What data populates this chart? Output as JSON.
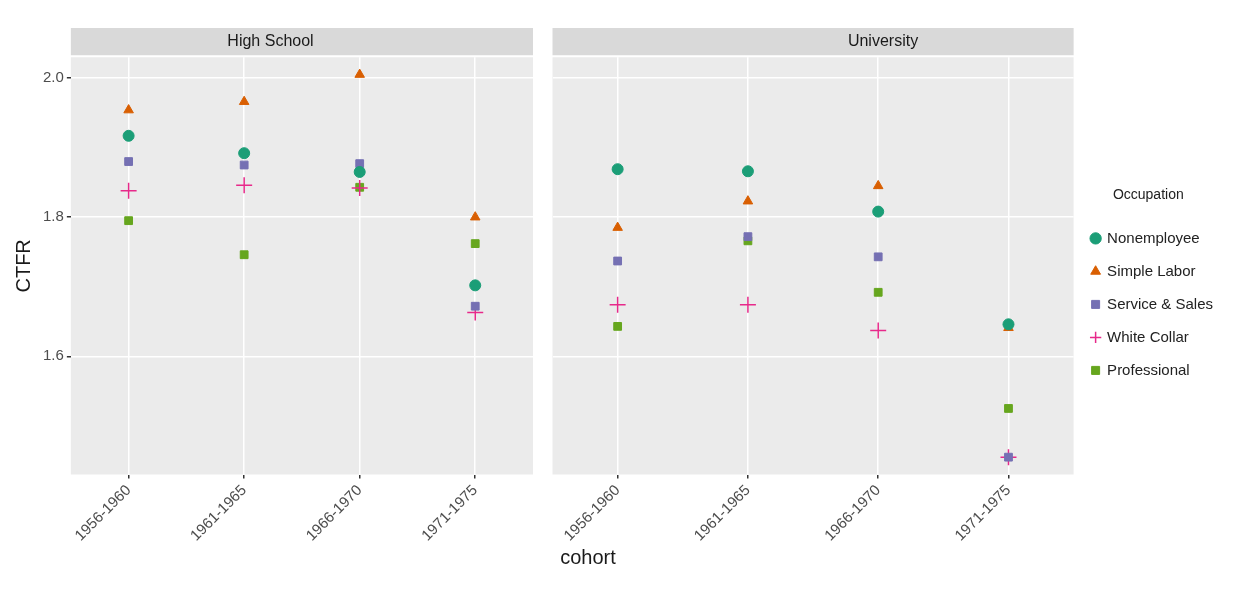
{
  "chart_data": [
    {
      "type": "scatter",
      "title": "High School",
      "xlabel": "cohort",
      "ylabel": "CTFR",
      "categories": [
        "1956-1960",
        "1961-1965",
        "1966-1970",
        "1971-1975"
      ],
      "ylim": [
        1.43,
        2.03
      ],
      "yticks": [
        {
          "value": 1.6,
          "label": "1.6"
        },
        {
          "value": 1.8,
          "label": "1.8"
        },
        {
          "value": 2.0,
          "label": "2.0"
        }
      ],
      "grid": true,
      "legend": false,
      "series": [
        {
          "color": "#1b9e77",
          "marker": "circle",
          "values": [
            1.917,
            1.892,
            1.865,
            1.702
          ]
        },
        {
          "color": "#d95f02",
          "marker": "triangle",
          "values": [
            1.954,
            1.966,
            2.005,
            1.8
          ]
        },
        {
          "color": "#7570b3",
          "marker": "square",
          "values": [
            1.88,
            1.875,
            1.877,
            1.672
          ]
        },
        {
          "color": "#e7298a",
          "marker": "cross",
          "values": [
            1.838,
            1.846,
            1.842,
            1.663
          ]
        },
        {
          "color": "#66a61e",
          "marker": "square",
          "values": [
            1.795,
            1.746,
            1.843,
            1.762
          ]
        }
      ]
    },
    {
      "type": "scatter",
      "title": "University",
      "categories": [
        "1956-1960",
        "1961-1965",
        "1966-1970",
        "1971-1975"
      ],
      "ylim": [
        1.43,
        2.03
      ],
      "yticks": [
        1.6,
        1.8,
        2
      ],
      "grid": true,
      "tick_labels": "x",
      "legend": "right",
      "legend_title": "Occupation",
      "series": [
        {
          "name": "Nonemployee",
          "color": "#1b9e77",
          "marker": "circle",
          "values": [
            1.869,
            1.866,
            1.808,
            1.646
          ]
        },
        {
          "name": "Simple Labor",
          "color": "#d95f02",
          "marker": "triangle",
          "values": [
            1.785,
            1.823,
            1.845,
            1.641
          ]
        },
        {
          "name": "Service & Sales",
          "color": "#7570b3",
          "marker": "square",
          "values": [
            1.737,
            1.772,
            1.743,
            1.455
          ]
        },
        {
          "name": "White Collar",
          "color": "#e7298a",
          "marker": "cross",
          "values": [
            1.674,
            1.674,
            1.637,
            1.455
          ]
        },
        {
          "name": "Professional",
          "color": "#66a61e",
          "marker": "square",
          "values": [
            1.643,
            1.766,
            1.692,
            1.525
          ]
        }
      ]
    }
  ]
}
